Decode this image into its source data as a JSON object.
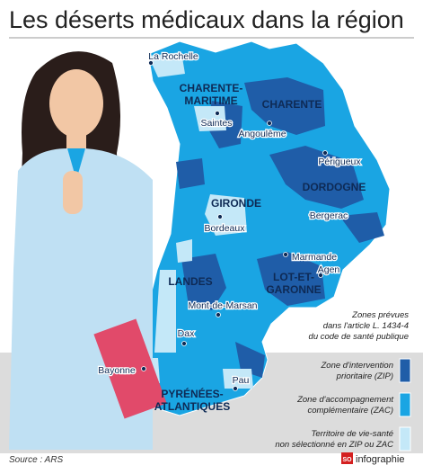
{
  "header": {
    "title": "Les déserts médicaux dans la région"
  },
  "departments": [
    {
      "lines": [
        "CHARENTE-",
        "MARITIME"
      ]
    },
    {
      "lines": [
        "CHARENTE"
      ]
    },
    {
      "lines": [
        "DORDOGNE"
      ]
    },
    {
      "lines": [
        "GIRONDE"
      ]
    },
    {
      "lines": [
        "LANDES"
      ]
    },
    {
      "lines": [
        "LOT-ET-",
        "GARONNE"
      ]
    },
    {
      "lines": [
        "PYRÉNÉES-",
        "ATLANTIQUES"
      ]
    }
  ],
  "cities": [
    "La Rochelle",
    "Saintes",
    "Angoulême",
    "Périgueux",
    "Bergerac",
    "Bordeaux",
    "Marmande",
    "Agen",
    "Mont-de-Marsan",
    "Dax",
    "Bayonne",
    "Pau"
  ],
  "legend": {
    "note": [
      "Zones prévues",
      "dans l'article L. 1434-4",
      "du code de santé publique"
    ],
    "items": [
      {
        "lines": [
          "Zone d'intervention",
          "prioritaire (ZIP)"
        ],
        "color": "#1f5da8"
      },
      {
        "lines": [
          "Zone d'accompagnement",
          "complémentaire (ZAC)"
        ],
        "color": "#1aa5e3"
      },
      {
        "lines": [
          "Territoire de vie-santé",
          "non sélectionné en ZIP ou ZAC"
        ],
        "color": "#c4e8f8"
      }
    ]
  },
  "footer": {
    "source": "Source : ARS",
    "logo_mark": "SO",
    "logo_text": "infographie"
  }
}
